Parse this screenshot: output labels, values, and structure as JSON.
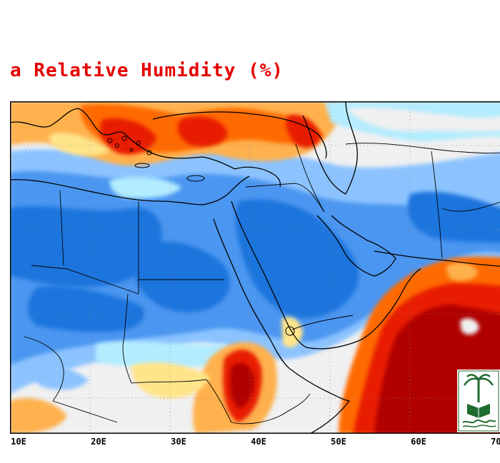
{
  "title": "a Relative Humidity (%)",
  "map": {
    "region": "Middle East and North Africa",
    "variable": "relative humidity",
    "unit": "%",
    "lon_range": [
      10,
      72
    ],
    "lat_range": [
      8,
      45
    ],
    "gridlines": "dotted",
    "x_ticks": [
      "10E",
      "20E",
      "30E",
      "40E",
      "50E",
      "60E",
      "70E"
    ],
    "colors": {
      "very_dry": "#1e74dd",
      "dry": "#4c96f0",
      "moderately_dry": "#8cc3ff",
      "mid_dry": "#b3ecff",
      "neutral": "#f0f0f0",
      "mid_humid": "#ffe48a",
      "moist": "#ffb14d",
      "humid": "#ff6a00",
      "very_humid": "#e81e00",
      "wettest": "#b00000"
    }
  },
  "logo": {
    "type": "university seal",
    "color": "#1e6b2e"
  }
}
